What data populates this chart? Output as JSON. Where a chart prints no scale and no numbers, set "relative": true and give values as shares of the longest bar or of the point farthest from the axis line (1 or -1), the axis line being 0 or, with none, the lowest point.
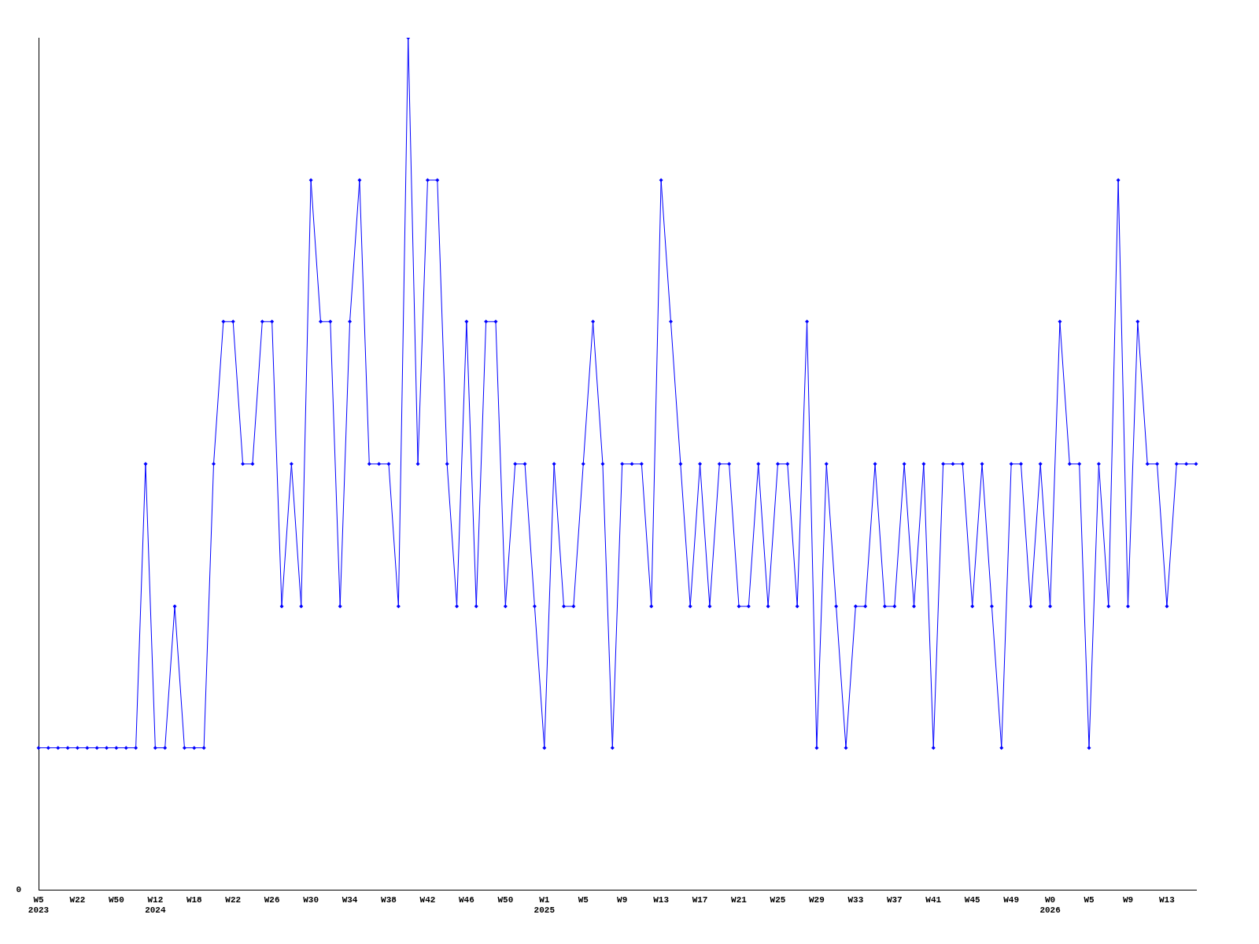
{
  "chart_data": {
    "type": "line",
    "relative": true,
    "marker": "diamond",
    "grid": false,
    "legend": false,
    "annotations": [
      "0"
    ],
    "categories": [
      "W5\n2023",
      null,
      null,
      null,
      "W22",
      null,
      null,
      null,
      "W50",
      null,
      null,
      null,
      "W12\n2024",
      null,
      null,
      null,
      "W18",
      null,
      null,
      null,
      "W22",
      null,
      null,
      null,
      "W26",
      null,
      null,
      null,
      "W30",
      null,
      null,
      null,
      "W34",
      null,
      null,
      null,
      "W38",
      null,
      null,
      null,
      "W42",
      null,
      null,
      null,
      "W46",
      null,
      null,
      null,
      "W50",
      null,
      null,
      null,
      "W1\n2025",
      null,
      null,
      null,
      "W5",
      null,
      null,
      null,
      "W9",
      null,
      null,
      null,
      "W13",
      null,
      null,
      null,
      "W17",
      null,
      null,
      null,
      "W21",
      null,
      null,
      null,
      "W25",
      null,
      null,
      null,
      "W29",
      null,
      null,
      null,
      "W33",
      null,
      null,
      null,
      "W37",
      null,
      null,
      null,
      "W41",
      null,
      null,
      null,
      "W45",
      null,
      null,
      null,
      "W49",
      null,
      null,
      null,
      "W0\n2026",
      null,
      null,
      null,
      "W5",
      null,
      null,
      null,
      "W9",
      null,
      null,
      null,
      "W13",
      null,
      null,
      null
    ],
    "series": [
      {
        "color": "#0000ff",
        "values": [
          0.167,
          0.167,
          0.167,
          0.167,
          0.167,
          0.167,
          0.167,
          0.167,
          0.167,
          0.167,
          0.167,
          0.5,
          0.167,
          0.167,
          0.333,
          0.167,
          0.167,
          0.167,
          0.5,
          0.667,
          0.667,
          0.5,
          0.5,
          0.667,
          0.667,
          0.333,
          0.5,
          0.333,
          0.833,
          0.667,
          0.667,
          0.333,
          0.667,
          0.833,
          0.5,
          0.5,
          0.5,
          0.333,
          1,
          0.5,
          0.833,
          0.833,
          0.5,
          0.333,
          0.667,
          0.333,
          0.667,
          0.667,
          0.333,
          0.5,
          0.5,
          0.333,
          0.167,
          0.5,
          0.333,
          0.333,
          0.5,
          0.667,
          0.5,
          0.167,
          0.5,
          0.5,
          0.5,
          0.333,
          0.833,
          0.667,
          0.5,
          0.333,
          0.5,
          0.333,
          0.5,
          0.5,
          0.333,
          0.333,
          0.5,
          0.333,
          0.5,
          0.5,
          0.333,
          0.667,
          0.167,
          0.5,
          0.333,
          0.167,
          0.333,
          0.333,
          0.5,
          0.333,
          0.333,
          0.5,
          0.333,
          0.5,
          0.167,
          0.5,
          0.5,
          0.5,
          0.333,
          0.5,
          0.333,
          0.167,
          0.5,
          0.5,
          0.333,
          0.5,
          0.333,
          0.667,
          0.5,
          0.5,
          0.167,
          0.5,
          0.333,
          0.833,
          0.333,
          0.667,
          0.5,
          0.5,
          0.333,
          0.5,
          0.5,
          0.5
        ]
      }
    ]
  }
}
